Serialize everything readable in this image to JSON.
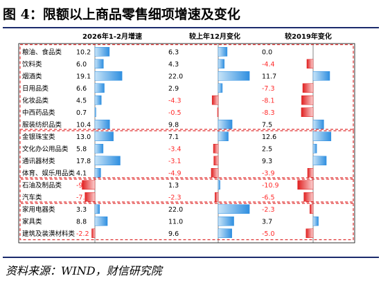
{
  "title": "图 4：限额以上商品零售细项增速及变化",
  "source": "资料来源：WIND，财信研究院",
  "chart_data": {
    "type": "bar",
    "orientation": "horizontal",
    "categories": [
      "粮油、食品类",
      "饮料类",
      "烟酒类",
      "日用品类",
      "化妆品类",
      "中西药品类",
      "服装纺织品类",
      "金银珠宝类",
      "文化办公用品类",
      "通讯器材类",
      "体育、娱乐用品类",
      "石油及制品类",
      "汽车类",
      "家用电器类",
      "家具类",
      "建筑及装潢材料类"
    ],
    "series": [
      {
        "name": "2026年1-2月增速",
        "values": [
          10.2,
          6.0,
          19.1,
          6.6,
          4.5,
          0.7,
          10.4,
          13.0,
          5.8,
          17.8,
          4.1,
          -9.0,
          -7.0,
          3.3,
          8.8,
          -2.2
        ],
        "labels": [
          "10.2",
          "6.0",
          "19.1",
          "6.6",
          "4.5",
          "0.7",
          "10.4",
          "13.0",
          "5.8",
          "17.8",
          "4.1",
          "-9",
          "-7.",
          "3.3",
          "8.8",
          "-2.2"
        ]
      },
      {
        "name": "较上年12月变化",
        "values": [
          6.3,
          4.3,
          22.0,
          2.9,
          -4.3,
          -0.5,
          9.8,
          7.1,
          -3.4,
          -3.1,
          -4.9,
          1.3,
          -2.3,
          22.0,
          11.0,
          9.6
        ],
        "labels": [
          "6.3",
          "4.3",
          "22.0",
          "2.9",
          "-4.3",
          "-0.5",
          "9.8",
          "7.1",
          "-3.4",
          "-3.1",
          "-4.9",
          "1.3",
          "-2.3",
          "22.0",
          "11.0",
          "9.6"
        ]
      },
      {
        "name": "较2019年变化",
        "values": [
          0.0,
          -4.4,
          11.7,
          -7.3,
          -8.1,
          -8.3,
          7.5,
          12.6,
          2.5,
          9.3,
          -3.9,
          -10.9,
          -6.5,
          -2.3,
          3.7,
          -5.0
        ],
        "labels": [
          "0.0",
          "-4.4",
          "11.7",
          "-7.3",
          "-8.1",
          "-8.3",
          "7.5",
          "12.6",
          "2.5",
          "9.3",
          "-3.9",
          "-10.9",
          "-6.5",
          "-2.3",
          "3.7",
          "-5.0"
        ]
      }
    ],
    "groups": [
      [
        0,
        6
      ],
      [
        7,
        10
      ],
      [
        11,
        12
      ],
      [
        13,
        15
      ]
    ],
    "colors": {
      "positive_light": "#c8e4f8",
      "positive_dark": "#2f8fe0",
      "negative_light": "#fbd0d0",
      "negative_dark": "#e02020",
      "group_border": "#e03030",
      "frame": "#000000"
    }
  }
}
